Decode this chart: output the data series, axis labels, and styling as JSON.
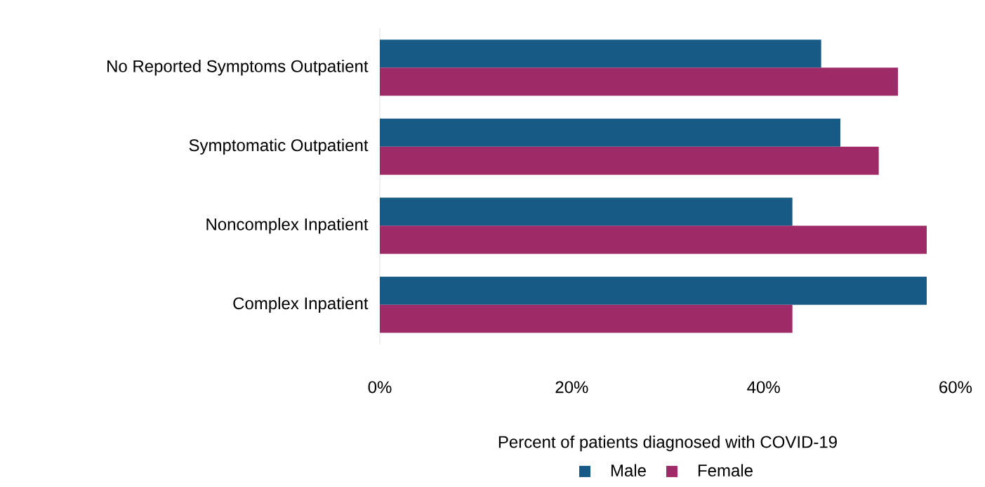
{
  "chart_data": {
    "type": "bar",
    "orientation": "horizontal",
    "categories": [
      "No Reported Symptoms Outpatient",
      "Symptomatic Outpatient",
      "Noncomplex Inpatient",
      "Complex Inpatient"
    ],
    "series": [
      {
        "name": "Male",
        "color": "#175a85",
        "values": [
          46,
          48,
          43,
          57
        ]
      },
      {
        "name": "Female",
        "color": "#9e2a68",
        "values": [
          54,
          52,
          57,
          43
        ]
      }
    ],
    "xlim": [
      0,
      60
    ],
    "xticks": [
      {
        "value": 0,
        "label": "0%"
      },
      {
        "value": 20,
        "label": "20%"
      },
      {
        "value": 40,
        "label": "40%"
      },
      {
        "value": 60,
        "label": "60%"
      }
    ],
    "xlabel": "Percent of patients diagnosed with COVID-19",
    "legend": "bottom"
  }
}
